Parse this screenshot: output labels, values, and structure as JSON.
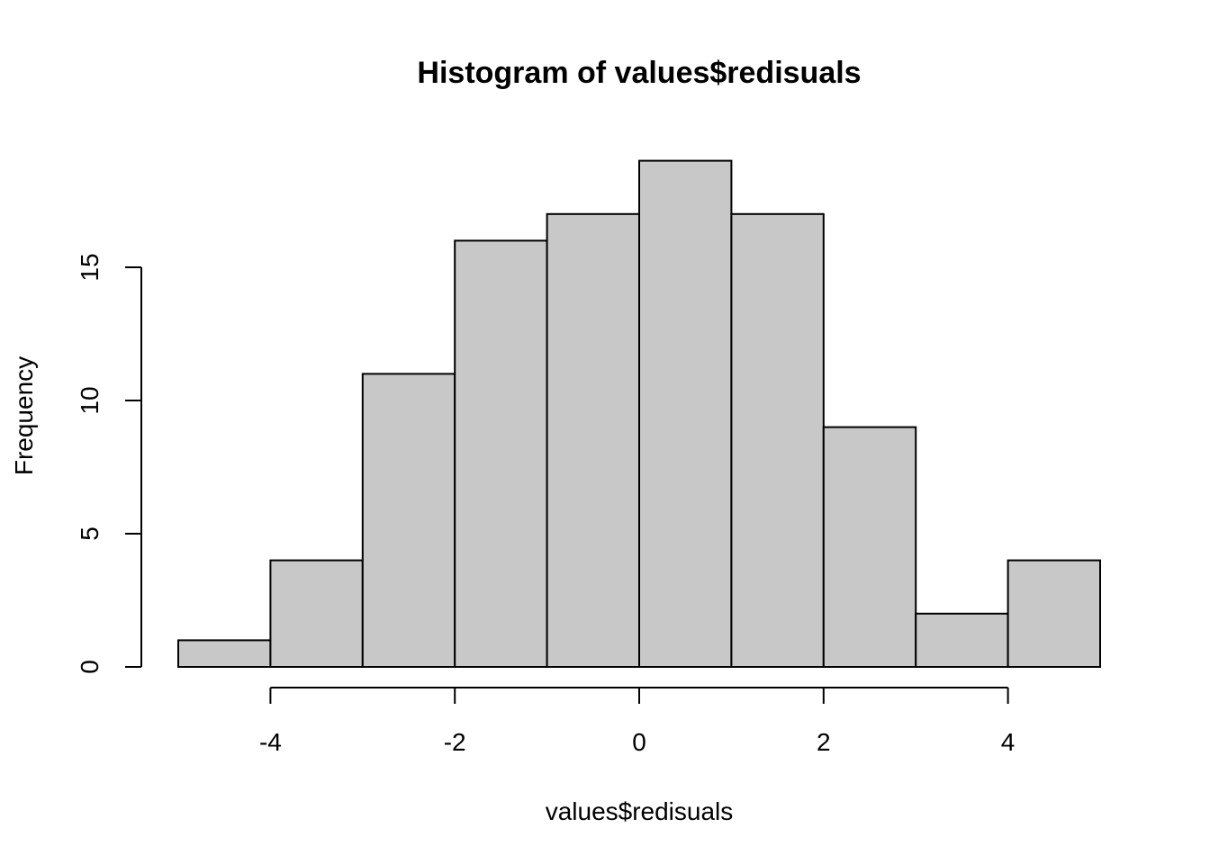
{
  "chart_data": {
    "type": "bar",
    "title": "Histogram of values$redisuals",
    "xlabel": "values$redisuals",
    "ylabel": "Frequency",
    "bins": [
      {
        "start": -5,
        "end": -4,
        "count": 1
      },
      {
        "start": -4,
        "end": -3,
        "count": 4
      },
      {
        "start": -3,
        "end": -2,
        "count": 11
      },
      {
        "start": -2,
        "end": -1,
        "count": 16
      },
      {
        "start": -1,
        "end": 0,
        "count": 17
      },
      {
        "start": 0,
        "end": 1,
        "count": 19
      },
      {
        "start": 1,
        "end": 2,
        "count": 17
      },
      {
        "start": 2,
        "end": 3,
        "count": 9
      },
      {
        "start": 3,
        "end": 4,
        "count": 2
      },
      {
        "start": 4,
        "end": 5,
        "count": 4
      }
    ],
    "x_ticks": [
      -4,
      -2,
      0,
      2,
      4
    ],
    "x_tick_labels": [
      "-4",
      "-2",
      "0",
      "2",
      "4"
    ],
    "y_ticks": [
      0,
      5,
      10,
      15
    ],
    "y_tick_labels": [
      "0",
      "5",
      "10",
      "15"
    ],
    "xlim": [
      -5,
      5
    ],
    "ylim": [
      0,
      19
    ],
    "grid": false,
    "colors": {
      "bar_fill": "#c8c8c8",
      "bar_stroke": "#000000"
    }
  }
}
